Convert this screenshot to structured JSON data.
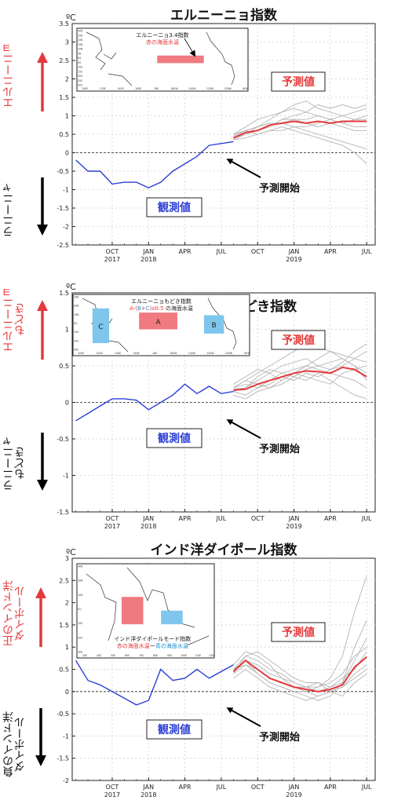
{
  "unit_label": "ºC",
  "chart_data": [
    {
      "type": "line",
      "title": "エルニーニョ指数",
      "ylim": [
        -2.5,
        3.5
      ],
      "yticks": [
        -2.5,
        -2,
        -1.5,
        -1,
        -0.5,
        0,
        0.5,
        1,
        1.5,
        2,
        2.5,
        3,
        3.5
      ],
      "xticks": [
        {
          "month": 3,
          "label": "OCT",
          "year": "2017"
        },
        {
          "month": 6,
          "label": "JAN",
          "year": "2018"
        },
        {
          "month": 9,
          "label": "APR",
          "year": ""
        },
        {
          "month": 12,
          "label": "JUL",
          "year": ""
        },
        {
          "month": 15,
          "label": "OCT",
          "year": ""
        },
        {
          "month": 18,
          "label": "JAN",
          "year": "2019"
        },
        {
          "month": 21,
          "label": "APR",
          "year": ""
        },
        {
          "month": 24,
          "label": "JUL",
          "year": ""
        }
      ],
      "grid": true,
      "up_label": "エルニーニョ",
      "down_label": "ラニーニャ",
      "observed": {
        "label": "観測値",
        "color": "#2b3fd6",
        "x": [
          0,
          1,
          2,
          3,
          4,
          5,
          6,
          7,
          8,
          9,
          10,
          11,
          12,
          13
        ],
        "y": [
          -0.2,
          -0.5,
          -0.5,
          -0.85,
          -0.8,
          -0.8,
          -0.95,
          -0.8,
          -0.5,
          -0.3,
          -0.1,
          0.2,
          0.25,
          0.3
        ]
      },
      "forecast_label": "予測値",
      "forecast_mean": {
        "color": "#e5393b",
        "x": [
          13,
          14,
          15,
          16,
          17,
          18,
          19,
          20,
          21,
          22,
          23,
          24
        ],
        "y": [
          0.4,
          0.55,
          0.6,
          0.75,
          0.8,
          0.85,
          0.8,
          0.85,
          0.8,
          0.85,
          0.85,
          0.85
        ]
      },
      "ensemble": {
        "color": "#b4b4b4",
        "x": [
          13,
          14,
          15,
          16,
          17,
          18,
          19,
          20,
          21,
          22,
          23,
          24
        ],
        "members": [
          [
            0.5,
            0.7,
            0.9,
            1.0,
            1.1,
            1.3,
            1.4,
            1.2,
            1.1,
            1.0,
            0.9,
            1.0
          ],
          [
            0.45,
            0.6,
            0.7,
            0.9,
            1.1,
            1.2,
            1.1,
            1.3,
            1.2,
            1.3,
            1.2,
            1.3
          ],
          [
            0.4,
            0.5,
            0.6,
            0.7,
            0.9,
            0.9,
            0.8,
            0.7,
            0.8,
            0.7,
            0.6,
            0.6
          ],
          [
            0.35,
            0.4,
            0.5,
            0.6,
            0.6,
            0.7,
            0.6,
            0.5,
            0.4,
            0.3,
            0.2,
            0.1
          ],
          [
            0.45,
            0.6,
            0.7,
            0.8,
            0.8,
            0.7,
            0.7,
            0.8,
            0.9,
            1.0,
            1.1,
            1.2
          ],
          [
            0.5,
            0.6,
            0.5,
            0.6,
            0.7,
            0.6,
            0.5,
            0.4,
            0.3,
            0.2,
            0.0,
            -0.3
          ],
          [
            0.4,
            0.5,
            0.6,
            0.7,
            0.9,
            1.0,
            1.1,
            1.0,
            0.9,
            0.8,
            0.9,
            0.9
          ],
          [
            0.35,
            0.5,
            0.7,
            0.8,
            0.8,
            0.9,
            0.9,
            1.0,
            0.9,
            0.8,
            0.7,
            0.7
          ]
        ]
      },
      "forecast_start_label": "予測開始",
      "inset": {
        "title": "エルニーニョ3.4指数",
        "subtitle_parts": [
          {
            "text": "赤の海面水温",
            "color": "#e5393b"
          }
        ],
        "lat_labels": [
          "30N",
          "25N",
          "20N",
          "15N",
          "10N",
          "5N",
          "EQ",
          "5S",
          "10S",
          "15S",
          "20S",
          "25S",
          "30S"
        ],
        "lon_labels": [
          "100E",
          "120E",
          "140E",
          "160E",
          "180",
          "160W",
          "140W",
          "120W",
          "100W",
          "80W"
        ],
        "boxes": [
          {
            "label": "",
            "color": "#f07a7f",
            "x0": 0.45,
            "x1": 0.74,
            "y0": 0.46,
            "y1": 0.6
          }
        ]
      }
    },
    {
      "type": "line",
      "title": "エルニーニョもどき指数",
      "ylim": [
        -1.5,
        1.5
      ],
      "yticks": [
        -1.5,
        -1,
        -0.5,
        0,
        0.5,
        1,
        1.5
      ],
      "xticks": [
        {
          "month": 3,
          "label": "OCT",
          "year": "2017"
        },
        {
          "month": 6,
          "label": "JAN",
          "year": "2018"
        },
        {
          "month": 9,
          "label": "APR",
          "year": ""
        },
        {
          "month": 12,
          "label": "JUL",
          "year": ""
        },
        {
          "month": 15,
          "label": "OCT",
          "year": ""
        },
        {
          "month": 18,
          "label": "JAN",
          "year": "2019"
        },
        {
          "month": 21,
          "label": "APR",
          "year": ""
        },
        {
          "month": 24,
          "label": "JUL",
          "year": ""
        }
      ],
      "grid": true,
      "up_label": "エルニーニョ\nもどき",
      "down_label": "ラニーニャ\nもどき",
      "observed": {
        "label": "観測値",
        "color": "#2b3fd6",
        "x": [
          0,
          1,
          2,
          3,
          4,
          5,
          6,
          7,
          8,
          9,
          10,
          11,
          12,
          13
        ],
        "y": [
          -0.25,
          -0.15,
          -0.05,
          0.05,
          0.05,
          0.03,
          -0.1,
          0.0,
          0.1,
          0.25,
          0.12,
          0.22,
          0.12,
          0.15
        ]
      },
      "forecast_label": "予測値",
      "forecast_mean": {
        "color": "#e5393b",
        "x": [
          13,
          14,
          15,
          16,
          17,
          18,
          19,
          20,
          21,
          22,
          23,
          24
        ],
        "y": [
          0.17,
          0.18,
          0.25,
          0.3,
          0.35,
          0.4,
          0.43,
          0.42,
          0.4,
          0.48,
          0.45,
          0.35
        ]
      },
      "ensemble": {
        "color": "#b4b4b4",
        "x": [
          13,
          14,
          15,
          16,
          17,
          18,
          19,
          20,
          21,
          22,
          23,
          24
        ],
        "members": [
          [
            0.2,
            0.3,
            0.4,
            0.5,
            0.6,
            0.7,
            0.8,
            0.75,
            0.7,
            0.65,
            0.6,
            0.55
          ],
          [
            0.15,
            0.2,
            0.3,
            0.4,
            0.3,
            0.4,
            0.5,
            0.6,
            0.7,
            0.6,
            0.5,
            0.4
          ],
          [
            0.2,
            0.25,
            0.2,
            0.25,
            0.35,
            0.3,
            0.4,
            0.35,
            0.45,
            0.5,
            0.6,
            0.7
          ],
          [
            0.1,
            0.05,
            0.15,
            0.2,
            0.25,
            0.35,
            0.3,
            0.4,
            0.3,
            0.2,
            0.1,
            0.05
          ],
          [
            0.25,
            0.35,
            0.45,
            0.4,
            0.5,
            0.55,
            0.6,
            0.5,
            0.45,
            0.55,
            0.7,
            0.8
          ],
          [
            0.15,
            0.1,
            0.2,
            0.3,
            0.4,
            0.45,
            0.5,
            0.45,
            0.4,
            0.35,
            0.3,
            0.2
          ],
          [
            0.2,
            0.3,
            0.25,
            0.2,
            0.3,
            0.4,
            0.35,
            0.3,
            0.25,
            0.4,
            0.45,
            0.5
          ],
          [
            0.18,
            0.2,
            0.35,
            0.45,
            0.4,
            0.35,
            0.45,
            0.5,
            0.55,
            0.6,
            0.5,
            0.3
          ]
        ]
      },
      "forecast_start_label": "予測開始",
      "inset": {
        "title": "エルニーニョもどき指数",
        "subtitle_parts": [
          {
            "text": "A",
            "color": "#e5393b"
          },
          {
            "text": "-(",
            "color": "#e5393b"
          },
          {
            "text": "B",
            "color": "#1d8fd6"
          },
          {
            "text": "+",
            "color": "#e5393b"
          },
          {
            "text": "C",
            "color": "#1d8fd6"
          },
          {
            "text": ")x0.5 ",
            "color": "#e5393b"
          },
          {
            "text": "の海面水温",
            "color": "#222222"
          }
        ],
        "lat_labels": [
          "30N",
          "20N",
          "10N",
          "EQ",
          "10S",
          "20S",
          "30S"
        ],
        "lon_labels": [
          "100E",
          "120E",
          "140E",
          "160E",
          "180",
          "160W",
          "140W",
          "120W",
          "100W",
          "80W"
        ],
        "boxes": [
          {
            "label": "C",
            "color": "#7fc6ec",
            "x0": 0.07,
            "x1": 0.17,
            "y0": 0.22,
            "y1": 0.88
          },
          {
            "label": "A",
            "color": "#f07a7f",
            "x0": 0.35,
            "x1": 0.58,
            "y0": 0.3,
            "y1": 0.62
          },
          {
            "label": "B",
            "color": "#7fc6ec",
            "x0": 0.74,
            "x1": 0.86,
            "y0": 0.35,
            "y1": 0.7
          }
        ]
      }
    },
    {
      "type": "line",
      "title": "インド洋ダイポール指数",
      "ylim": [
        -2,
        3
      ],
      "yticks": [
        -2,
        -1.5,
        -1,
        -0.5,
        0,
        0.5,
        1,
        1.5,
        2,
        2.5,
        3
      ],
      "xticks": [
        {
          "month": 3,
          "label": "OCT",
          "year": "2017"
        },
        {
          "month": 6,
          "label": "JAN",
          "year": "2018"
        },
        {
          "month": 9,
          "label": "APR",
          "year": ""
        },
        {
          "month": 12,
          "label": "JUL",
          "year": ""
        },
        {
          "month": 15,
          "label": "OCT",
          "year": ""
        },
        {
          "month": 18,
          "label": "JAN",
          "year": "2019"
        },
        {
          "month": 21,
          "label": "APR",
          "year": ""
        },
        {
          "month": 24,
          "label": "JUL",
          "year": ""
        }
      ],
      "grid": true,
      "up_label": "正のインド洋\nダイポール",
      "down_label": "負のインド洋\nダイポール",
      "observed": {
        "label": "観測値",
        "color": "#2b3fd6",
        "x": [
          0,
          1,
          2,
          3,
          4,
          5,
          6,
          7,
          8,
          9,
          10,
          11,
          12,
          13
        ],
        "y": [
          0.7,
          0.25,
          0.15,
          0.0,
          -0.15,
          -0.3,
          -0.2,
          0.5,
          0.25,
          0.3,
          0.5,
          0.3,
          0.45,
          0.6
        ]
      },
      "forecast_label": "予測値",
      "forecast_mean": {
        "color": "#e5393b",
        "x": [
          13,
          14,
          15,
          16,
          17,
          18,
          19,
          20,
          21,
          22,
          23,
          24
        ],
        "y": [
          0.45,
          0.7,
          0.5,
          0.3,
          0.2,
          0.1,
          0.05,
          0.0,
          0.05,
          0.15,
          0.55,
          0.78
        ]
      },
      "ensemble": {
        "color": "#b4b4b4",
        "x": [
          13,
          14,
          15,
          16,
          17,
          18,
          19,
          20,
          21,
          22,
          23,
          24
        ],
        "members": [
          [
            0.5,
            0.8,
            0.7,
            0.5,
            0.4,
            0.2,
            0.1,
            0.1,
            0.3,
            0.8,
            1.8,
            2.6
          ],
          [
            0.4,
            0.6,
            0.4,
            0.2,
            0.1,
            0.0,
            -0.1,
            -0.2,
            -0.1,
            0.2,
            0.7,
            1.2
          ],
          [
            0.6,
            0.9,
            0.8,
            0.6,
            0.3,
            0.1,
            0.1,
            0.2,
            0.1,
            0.3,
            0.5,
            0.9
          ],
          [
            0.3,
            0.5,
            0.3,
            0.1,
            0.0,
            -0.1,
            -0.2,
            -0.1,
            0.0,
            0.1,
            0.3,
            0.5
          ],
          [
            0.5,
            0.7,
            0.6,
            0.4,
            0.3,
            0.2,
            0.1,
            0.0,
            0.1,
            0.2,
            1.0,
            1.6
          ],
          [
            0.4,
            0.8,
            0.9,
            0.7,
            0.5,
            0.3,
            0.2,
            0.2,
            0.0,
            -0.1,
            0.2,
            0.4
          ],
          [
            0.5,
            0.6,
            0.5,
            0.3,
            0.2,
            0.1,
            0.0,
            0.1,
            0.2,
            0.4,
            0.8,
            1.0
          ],
          [
            0.45,
            0.7,
            0.4,
            0.2,
            0.1,
            0.0,
            0.0,
            -0.1,
            0.0,
            0.1,
            0.4,
            0.6
          ]
        ]
      },
      "forecast_start_label": "予測開始",
      "inset": {
        "title": "インド洋ダイポールモード指数",
        "subtitle_parts": [
          {
            "text": "赤の海面水温",
            "color": "#e5393b"
          },
          {
            "text": "ー",
            "color": "#222222"
          },
          {
            "text": "青の海面水温",
            "color": "#1d8fd6"
          }
        ],
        "lat_labels": [
          "30N",
          "20N",
          "10N",
          "EQ",
          "10S",
          "20S",
          "30S"
        ],
        "lon_labels": [
          "30E",
          "40E",
          "50E",
          "60E",
          "70E",
          "80E",
          "90E",
          "100E",
          "110E",
          "120E"
        ],
        "boxes": [
          {
            "label": "",
            "color": "#f07a7f",
            "x0": 0.29,
            "x1": 0.46,
            "y0": 0.36,
            "y1": 0.68
          },
          {
            "label": "",
            "color": "#7fc6ec",
            "x0": 0.6,
            "x1": 0.77,
            "y0": 0.52,
            "y1": 0.68
          }
        ]
      }
    }
  ]
}
